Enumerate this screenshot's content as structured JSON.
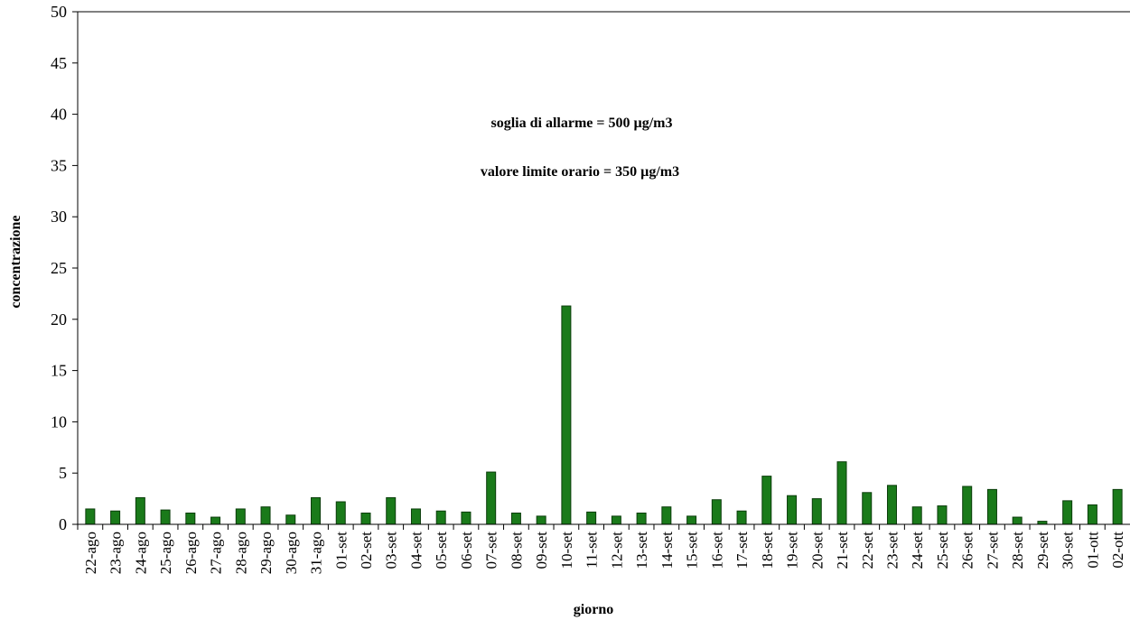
{
  "chart_data": {
    "type": "bar",
    "xlabel": "giorno",
    "ylabel": "concentrazione",
    "ylim": [
      0,
      50
    ],
    "yticks": [
      0,
      5,
      10,
      15,
      20,
      25,
      30,
      35,
      40,
      45,
      50
    ],
    "grid": false,
    "annotations": [
      "soglia di allarme = 500 µg/m3",
      "valore limite orario = 350 µg/m3"
    ],
    "bar_color": "#1a7a1a",
    "categories": [
      "22-ago",
      "23-ago",
      "24-ago",
      "25-ago",
      "26-ago",
      "27-ago",
      "28-ago",
      "29-ago",
      "30-ago",
      "31-ago",
      "01-set",
      "02-set",
      "03-set",
      "04-set",
      "05-set",
      "06-set",
      "07-set",
      "08-set",
      "09-set",
      "10-set",
      "11-set",
      "12-set",
      "13-set",
      "14-set",
      "15-set",
      "16-set",
      "17-set",
      "18-set",
      "19-set",
      "20-set",
      "21-set",
      "22-set",
      "23-set",
      "24-set",
      "25-set",
      "26-set",
      "27-set",
      "28-set",
      "29-set",
      "30-set",
      "01-ott",
      "02-ott"
    ],
    "values": [
      1.5,
      1.3,
      2.6,
      1.4,
      1.1,
      0.7,
      1.5,
      1.7,
      0.9,
      2.6,
      2.2,
      1.1,
      2.6,
      1.5,
      1.3,
      1.2,
      5.1,
      1.1,
      0.8,
      21.3,
      1.2,
      0.8,
      1.1,
      1.7,
      0.8,
      2.4,
      1.3,
      4.7,
      2.8,
      2.5,
      6.1,
      3.1,
      3.8,
      1.7,
      1.8,
      3.7,
      3.4,
      0.7,
      0.3,
      2.3,
      1.9,
      3.4
    ]
  }
}
